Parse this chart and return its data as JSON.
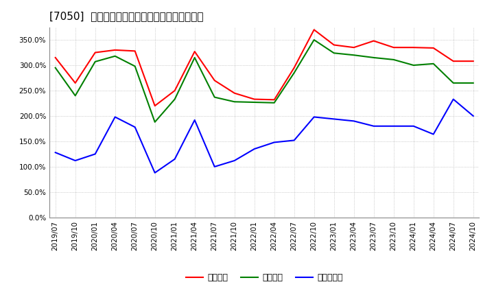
{
  "title": "[7050]  流動比率、当座比率、現預金比率の推移",
  "x_labels": [
    "2019/07",
    "2019/10",
    "2020/01",
    "2020/04",
    "2020/07",
    "2020/10",
    "2021/01",
    "2021/04",
    "2021/07",
    "2021/10",
    "2022/01",
    "2022/04",
    "2022/07",
    "2022/10",
    "2023/01",
    "2023/04",
    "2023/07",
    "2023/10",
    "2024/01",
    "2024/04",
    "2024/07",
    "2024/10"
  ],
  "ryudo": [
    315,
    265,
    325,
    330,
    328,
    220,
    250,
    327,
    270,
    245,
    233,
    232,
    295,
    370,
    340,
    335,
    348,
    335,
    335,
    334,
    308,
    308
  ],
  "toza": [
    295,
    240,
    307,
    318,
    298,
    188,
    233,
    315,
    237,
    228,
    227,
    226,
    285,
    350,
    324,
    320,
    315,
    311,
    300,
    303,
    265,
    265
  ],
  "genkin": [
    128,
    112,
    125,
    198,
    178,
    88,
    115,
    192,
    100,
    112,
    135,
    148,
    152,
    198,
    194,
    190,
    180,
    180,
    180,
    164,
    233,
    200
  ],
  "ryudo_color": "#ff0000",
  "toza_color": "#008000",
  "genkin_color": "#0000ff",
  "bg_color": "#ffffff",
  "plot_bg_color": "#ffffff",
  "grid_color": "#aaaaaa",
  "ylim": [
    0,
    375
  ],
  "yticks": [
    0,
    50,
    100,
    150,
    200,
    250,
    300,
    350
  ],
  "legend_labels": [
    "流動比率",
    "当座比率",
    "現預金比率"
  ],
  "title_fontsize": 11,
  "tick_fontsize": 7.5,
  "legend_fontsize": 9
}
